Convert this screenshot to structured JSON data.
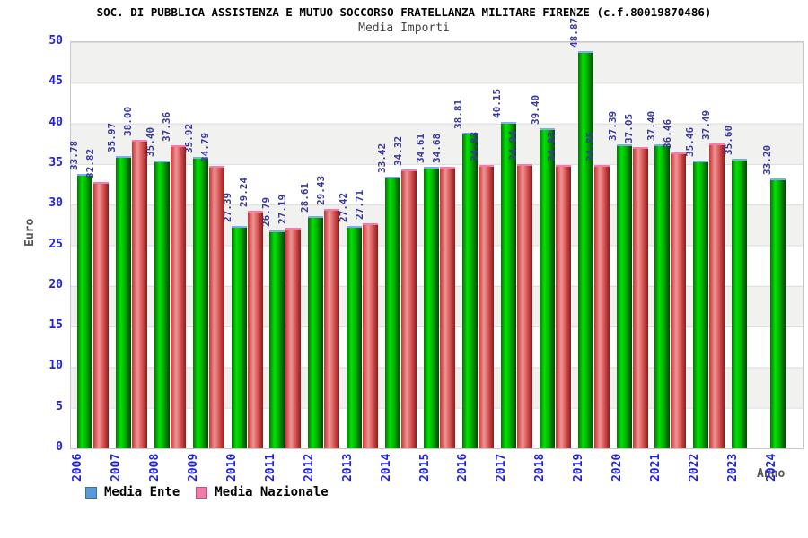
{
  "chart_data": {
    "type": "bar",
    "title": "SOC. DI PUBBLICA ASSISTENZA E MUTUO SOCCORSO FRATELLANZA MILITARE FIRENZE (c.f.80019870486)",
    "subtitle": "Media Importi",
    "xlabel": "Anno",
    "ylabel": "Euro",
    "ylim": [
      0,
      50
    ],
    "ytick_step": 5,
    "ytick_labels": [
      "0",
      "5",
      "10",
      "15",
      "20",
      "25",
      "30",
      "35",
      "40",
      "45",
      "50"
    ],
    "grid": "horizontal-bands",
    "legend_position": "bottom-left",
    "categories": [
      "2006",
      "2007",
      "2008",
      "2009",
      "2010",
      "2011",
      "2012",
      "2013",
      "2014",
      "2015",
      "2016",
      "2017",
      "2018",
      "2019",
      "2020",
      "2021",
      "2022",
      "2023",
      "2024"
    ],
    "series": [
      {
        "name": "Media Ente",
        "legend_color": "#5b9bd5",
        "legend_border": "#3a6ea5",
        "bar_color": "#00cc00",
        "bar_top_edge": "#82aaf0",
        "values": [
          33.78,
          35.97,
          35.4,
          35.92,
          27.39,
          26.79,
          28.61,
          27.42,
          33.42,
          34.61,
          38.81,
          40.15,
          39.4,
          48.87,
          37.39,
          37.4,
          35.46,
          35.6,
          33.2
        ]
      },
      {
        "name": "Media Nazionale",
        "legend_color": "#ef7caa",
        "legend_border": "#b85380",
        "bar_color": "#dd4444",
        "bar_top_edge": "#f878b0",
        "values": [
          32.82,
          38.0,
          37.36,
          34.79,
          29.24,
          27.19,
          29.43,
          27.71,
          34.32,
          34.68,
          34.83,
          34.94,
          34.83,
          34.85,
          37.05,
          36.46,
          37.49,
          null,
          null
        ]
      }
    ],
    "value_label_color": "#3a3a9e",
    "tick_label_color": "#2222dd"
  }
}
